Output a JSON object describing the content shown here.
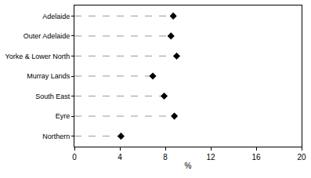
{
  "chart_data": {
    "type": "dot",
    "orientation": "horizontal",
    "categories": [
      "Adelaide",
      "Outer Adelaide",
      "Yorke & Lower North",
      "Murray Lands",
      "South East",
      "Eyre",
      "Northern"
    ],
    "values": [
      8.7,
      8.5,
      9.0,
      6.9,
      7.9,
      8.8,
      4.1
    ],
    "color": "#000000",
    "marker": "diamond",
    "line_style": "dashed",
    "xlabel": "%",
    "xlim": [
      0,
      20
    ],
    "xticks": [
      0,
      4,
      8,
      12,
      16,
      20
    ],
    "grid": false
  }
}
